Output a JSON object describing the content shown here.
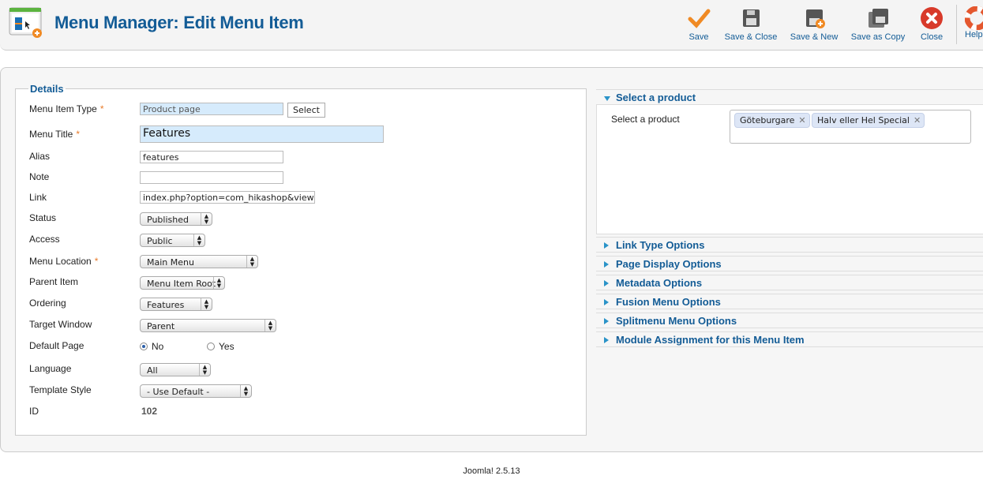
{
  "header": {
    "title": "Menu Manager: Edit Menu Item"
  },
  "toolbar": [
    {
      "label": "Save",
      "icon": "check-icon"
    },
    {
      "label": "Save & Close",
      "icon": "floppy-icon"
    },
    {
      "label": "Save & New",
      "icon": "floppy-plus-icon"
    },
    {
      "label": "Save as Copy",
      "icon": "floppy-copy-icon"
    },
    {
      "label": "Close",
      "icon": "close-icon"
    },
    {
      "label": "Help",
      "icon": "lifebuoy-icon"
    }
  ],
  "details": {
    "legend": "Details",
    "fields": {
      "type": {
        "label": "Menu Item Type",
        "value": "Product page",
        "button": "Select"
      },
      "title": {
        "label": "Menu Title",
        "value": "Features"
      },
      "alias": {
        "label": "Alias",
        "value": "features"
      },
      "note": {
        "label": "Note",
        "value": ""
      },
      "link": {
        "label": "Link",
        "value": "index.php?option=com_hikashop&view=product"
      },
      "status": {
        "label": "Status",
        "value": "Published"
      },
      "access": {
        "label": "Access",
        "value": "Public"
      },
      "location": {
        "label": "Menu Location",
        "value": "Main Menu"
      },
      "parent": {
        "label": "Parent Item",
        "value": "Menu Item Root"
      },
      "ordering": {
        "label": "Ordering",
        "value": "Features"
      },
      "target": {
        "label": "Target Window",
        "value": "Parent"
      },
      "default": {
        "label": "Default Page",
        "no": "No",
        "yes": "Yes",
        "selected": "No"
      },
      "language": {
        "label": "Language",
        "value": "All"
      },
      "template": {
        "label": "Template Style",
        "value": "- Use Default -"
      },
      "id": {
        "label": "ID",
        "value": "102"
      }
    },
    "required_mark": "*"
  },
  "panels": {
    "select_product": {
      "title": "Select a product",
      "label": "Select a product",
      "tags": [
        "Göteburgare",
        "Halv eller Hel Special"
      ]
    },
    "collapsed": [
      "Link Type Options",
      "Page Display Options",
      "Metadata Options",
      "Fusion Menu Options",
      "Splitmenu Menu Options",
      "Module Assignment for this Menu Item"
    ]
  },
  "footer": "Joomla! 2.5.13",
  "colors": {
    "accent": "#135c96",
    "required": "#e87b2b"
  }
}
